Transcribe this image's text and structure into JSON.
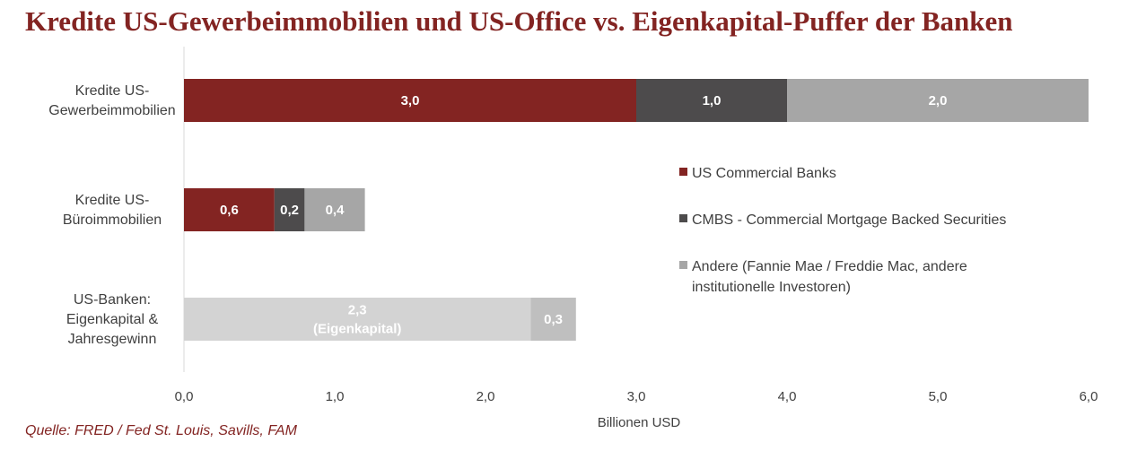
{
  "title": "Kredite US-Gewerbeimmobilien und US-Office vs. Eigenkapital-Puffer der Banken",
  "source": "Quelle: FRED / Fed St. Louis, Savills, FAM",
  "chart_data": {
    "type": "bar",
    "orientation": "horizontal",
    "stacked": true,
    "categories": [
      [
        "Kredite US-",
        "Gewerbeimmobilien"
      ],
      [
        "Kredite US-",
        "Büroimmobilien"
      ],
      [
        "US-Banken:",
        "Eigenkapital &",
        "Jahresgewinn"
      ]
    ],
    "bars": [
      {
        "segments": [
          {
            "value": 3.0,
            "label": [
              "3,0"
            ],
            "color": "#832422"
          },
          {
            "value": 1.0,
            "label": [
              "1,0"
            ],
            "color": "#4d4b4c"
          },
          {
            "value": 2.0,
            "label": [
              "2,0"
            ],
            "color": "#a6a6a6"
          }
        ]
      },
      {
        "segments": [
          {
            "value": 0.6,
            "label": [
              "0,6"
            ],
            "color": "#832422"
          },
          {
            "value": 0.2,
            "label": [
              "0,2"
            ],
            "color": "#4d4b4c"
          },
          {
            "value": 0.4,
            "label": [
              "0,4"
            ],
            "color": "#a6a6a6"
          }
        ]
      },
      {
        "segments": [
          {
            "value": 2.3,
            "label": [
              "2,3",
              "(Eigenkapital)"
            ],
            "color": "#d3d3d3"
          },
          {
            "value": 0.3,
            "label": [
              "0,3"
            ],
            "color": "#bfbfbf"
          }
        ]
      }
    ],
    "legend": [
      {
        "name": [
          "US Commercial Banks"
        ],
        "color": "#832422"
      },
      {
        "name": [
          "CMBS - Commercial Mortgage Backed Securities"
        ],
        "color": "#4d4b4c"
      },
      {
        "name": [
          "Andere (Fannie Mae / Freddie Mac, andere",
          "institutionelle Investoren)"
        ],
        "color": "#a6a6a6"
      }
    ],
    "legend_position": "right",
    "xlim": [
      0,
      6
    ],
    "xticks": [
      0,
      1,
      2,
      3,
      4,
      5,
      6
    ],
    "xtick_labels": [
      "0,0",
      "1,0",
      "2,0",
      "3,0",
      "4,0",
      "5,0",
      "6,0"
    ],
    "xlabel": "Billionen USD",
    "grid": false
  }
}
